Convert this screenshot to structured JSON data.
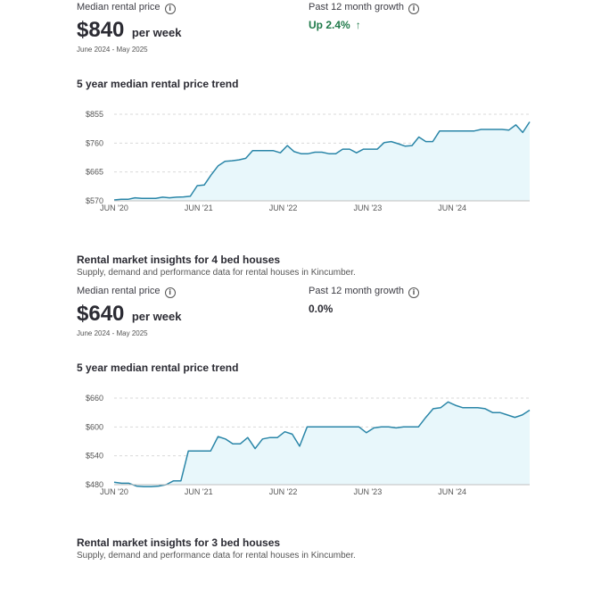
{
  "section1": {
    "median_label": "Median rental price",
    "price": "$840",
    "per": "per week",
    "period": "June 2024 - May 2025",
    "growth_label": "Past 12 month growth",
    "growth_value": "Up 2.4%",
    "trend_title": "5 year median rental price trend"
  },
  "section2": {
    "heading": "Rental market insights for 4 bed houses",
    "subtitle": "Supply, demand and performance data for rental houses in Kincumber.",
    "median_label": "Median rental price",
    "price": "$640",
    "per": "per week",
    "period": "June 2024 - May 2025",
    "growth_label": "Past 12 month growth",
    "growth_value": "0.0%",
    "trend_title": "5 year median rental price trend"
  },
  "section3": {
    "heading": "Rental market insights for 3 bed houses",
    "subtitle": "Supply, demand and performance data for rental houses in Kincumber."
  },
  "colors": {
    "line": "#2a86a8",
    "fill": "#e8f7fb",
    "grid": "#d9d9d9",
    "up": "#1f7a4a"
  },
  "chart_data": [
    {
      "type": "area",
      "title": "5 year median rental price trend",
      "ylim": [
        570,
        855
      ],
      "y_ticks": [
        "$855",
        "$760",
        "$665",
        "$570"
      ],
      "y_tick_values": [
        855,
        760,
        665,
        570
      ],
      "x_ticks": [
        "JUN '20",
        "JUN '21",
        "JUN '22",
        "JUN '23",
        "JUN '24"
      ],
      "x_tick_positions": [
        0,
        12,
        24,
        36,
        48
      ],
      "x_max": 59,
      "series": [
        {
          "values": [
            573,
            575,
            575,
            580,
            578,
            578,
            578,
            582,
            580,
            582,
            583,
            585,
            620,
            622,
            655,
            685,
            700,
            702,
            705,
            710,
            735,
            735,
            735,
            735,
            728,
            752,
            732,
            725,
            725,
            730,
            730,
            725,
            725,
            740,
            740,
            728,
            740,
            740,
            740,
            762,
            765,
            758,
            750,
            752,
            780,
            765,
            765,
            800,
            800,
            800,
            800,
            800,
            800,
            805,
            805,
            805,
            805,
            803,
            820,
            795,
            830
          ]
        }
      ]
    },
    {
      "type": "area",
      "title": "5 year median rental price trend",
      "ylim": [
        480,
        660
      ],
      "y_ticks": [
        "$660",
        "$600",
        "$540",
        "$480"
      ],
      "y_tick_values": [
        660,
        600,
        540,
        480
      ],
      "x_ticks": [
        "JUN '20",
        "JUN '21",
        "JUN '22",
        "JUN '23",
        "JUN '24"
      ],
      "x_tick_positions": [
        0,
        12,
        24,
        36,
        48
      ],
      "x_max": 59,
      "series": [
        {
          "values": [
            485,
            483,
            483,
            477,
            476,
            476,
            477,
            480,
            488,
            488,
            550,
            550,
            550,
            550,
            580,
            575,
            565,
            565,
            578,
            555,
            575,
            578,
            578,
            590,
            585,
            560,
            600,
            600,
            600,
            600,
            600,
            600,
            600,
            600,
            588,
            598,
            600,
            600,
            598,
            600,
            600,
            600,
            620,
            638,
            640,
            652,
            645,
            640,
            640,
            640,
            638,
            630,
            630,
            625,
            620,
            625,
            635
          ]
        }
      ]
    }
  ]
}
